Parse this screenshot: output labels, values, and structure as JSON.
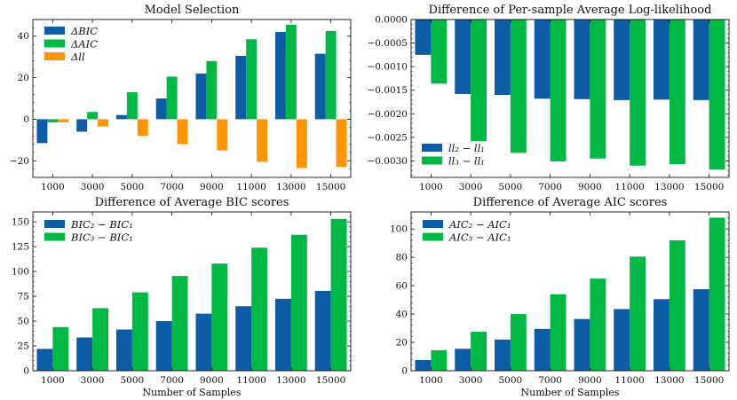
{
  "chart_data": [
    {
      "type": "bar",
      "title": "Model Selection",
      "xlabel": "",
      "ylabel": "",
      "categories": [
        "1000",
        "3000",
        "5000",
        "7000",
        "9000",
        "11000",
        "13000",
        "15000"
      ],
      "ylim": [
        -28,
        48
      ],
      "yticks": [
        -20,
        0,
        20,
        40
      ],
      "ytick_labels": [
        "−20",
        "0",
        "20",
        "40"
      ],
      "legend_position": "top-left",
      "series": [
        {
          "name": "ΔBIC",
          "color": "#0c5da5",
          "values": [
            -11.5,
            -6,
            2,
            10,
            22,
            30.5,
            42,
            31.5
          ]
        },
        {
          "name": "ΔAIC",
          "color": "#00b945",
          "values": [
            -1.5,
            3.5,
            13,
            20.5,
            28,
            38.5,
            45.5,
            42.5
          ]
        },
        {
          "name": "Δll",
          "color": "#ff9500",
          "values": [
            -1.5,
            -3.5,
            -8,
            -12,
            -15,
            -20.5,
            -23.5,
            -23
          ]
        }
      ]
    },
    {
      "type": "bar",
      "title": "Difference of Per-sample Average Log-likelihood",
      "xlabel": "",
      "ylabel": "",
      "categories": [
        "1000",
        "3000",
        "5000",
        "7000",
        "9000",
        "11000",
        "13000",
        "15000"
      ],
      "ylim": [
        -0.00335,
        0
      ],
      "yticks": [
        0,
        -0.0005,
        -0.001,
        -0.0015,
        -0.002,
        -0.0025,
        -0.003
      ],
      "ytick_labels": [
        "0.0000",
        "−0.0005",
        "−0.0010",
        "−0.0015",
        "−0.0020",
        "−0.0025",
        "−0.0030"
      ],
      "legend_position": "bottom-left",
      "series": [
        {
          "name": "ll₂ − ll₁",
          "color": "#0c5da5",
          "values": [
            -0.00075,
            -0.00158,
            -0.0016,
            -0.00168,
            -0.00169,
            -0.00171,
            -0.0017,
            -0.00171
          ]
        },
        {
          "name": "ll₃ − ll₁",
          "color": "#00b945",
          "values": [
            -0.00136,
            -0.00258,
            -0.00283,
            -0.00301,
            -0.00295,
            -0.0031,
            -0.00307,
            -0.00318
          ]
        }
      ]
    },
    {
      "type": "bar",
      "title": "Difference of Average BIC scores",
      "xlabel": "Number of Samples",
      "ylabel": "",
      "categories": [
        "1000",
        "3000",
        "5000",
        "7000",
        "9000",
        "11000",
        "13000",
        "15000"
      ],
      "ylim": [
        0,
        160
      ],
      "yticks": [
        0,
        25,
        50,
        75,
        100,
        125,
        150
      ],
      "ytick_labels": [
        "0",
        "25",
        "50",
        "75",
        "100",
        "125",
        "150"
      ],
      "legend_position": "top-left",
      "series": [
        {
          "name": "BIC₂ − BIC₁",
          "color": "#0c5da5",
          "values": [
            22,
            33.5,
            41.5,
            50,
            57.5,
            65,
            72.5,
            80.5
          ]
        },
        {
          "name": "BIC₃ − BIC₁",
          "color": "#00b945",
          "values": [
            44,
            63,
            79,
            95.5,
            108,
            124,
            137,
            153
          ]
        }
      ]
    },
    {
      "type": "bar",
      "title": "Difference of Average AIC scores",
      "xlabel": "Number of Samples",
      "ylabel": "",
      "categories": [
        "1000",
        "3000",
        "5000",
        "7000",
        "9000",
        "11000",
        "13000",
        "15000"
      ],
      "ylim": [
        0,
        112
      ],
      "yticks": [
        0,
        20,
        40,
        60,
        80,
        100
      ],
      "ytick_labels": [
        "0",
        "20",
        "40",
        "60",
        "80",
        "100"
      ],
      "legend_position": "top-left",
      "series": [
        {
          "name": "AIC₂ − AIC₁",
          "color": "#0c5da5",
          "values": [
            7.5,
            15.5,
            22,
            29.5,
            36.5,
            43.5,
            50.5,
            57.5
          ]
        },
        {
          "name": "AIC₃ − AIC₁",
          "color": "#00b945",
          "values": [
            14.5,
            27.5,
            40,
            54,
            65,
            80.5,
            92,
            108
          ]
        }
      ]
    }
  ]
}
